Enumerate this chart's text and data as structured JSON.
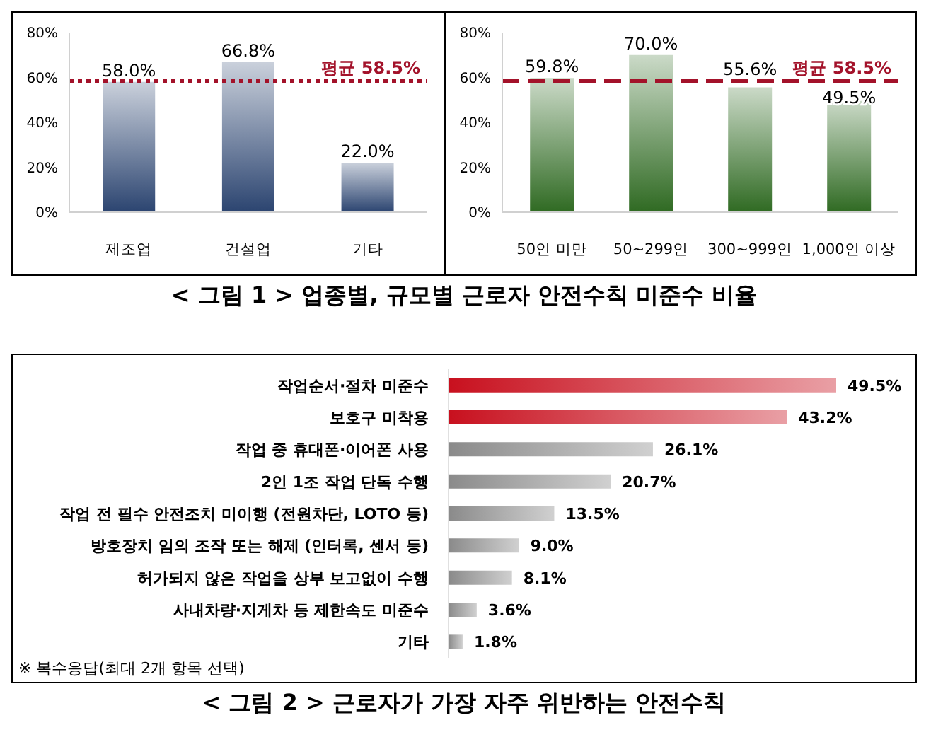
{
  "chart_data": [
    {
      "type": "bar",
      "categories": [
        "제조업",
        "건설업",
        "기타"
      ],
      "values": [
        58.0,
        66.8,
        22.0
      ],
      "color": "#2b4470",
      "value_labels": [
        "58.0%",
        "66.8%",
        "22.0%"
      ],
      "ylim": [
        0,
        80
      ],
      "yticks": [
        {
          "value": 0,
          "label": "0%"
        },
        {
          "value": 20,
          "label": "20%"
        },
        {
          "value": 40,
          "label": "40%"
        },
        {
          "value": 60,
          "label": "60%"
        },
        {
          "value": 80,
          "label": "80%"
        }
      ],
      "ref_lines": [
        {
          "axis": "y",
          "value": 58.5,
          "label": "평균 58.5%",
          "color": "#a3122a",
          "line_style": "dotted"
        }
      ],
      "annotations": [
        "< 그림 1 > 업종별, 규모별 근로자 안전수칙 미준수 비율"
      ]
    },
    {
      "type": "bar",
      "categories": [
        "50인 미만",
        "50~299인",
        "300~999인",
        "1,000인 이상"
      ],
      "values": [
        59.8,
        70.0,
        55.6,
        49.5
      ],
      "color": "#2f6a22",
      "value_labels": [
        "59.8%",
        "70.0%",
        "55.6%",
        "49.5%"
      ],
      "ylim": [
        0,
        80
      ],
      "yticks": [
        {
          "value": 0,
          "label": "0%"
        },
        {
          "value": 20,
          "label": "20%"
        },
        {
          "value": 40,
          "label": "40%"
        },
        {
          "value": 60,
          "label": "60%"
        },
        {
          "value": 80,
          "label": "80%"
        }
      ],
      "ref_lines": [
        {
          "axis": "y",
          "value": 58.5,
          "label": "평균 58.5%",
          "color": "#a3122a",
          "line_style": "dashed"
        }
      ]
    },
    {
      "type": "bar",
      "orientation": "horizontal",
      "title": "< 그림 2 > 근로자가 가장 자주 위반하는 안전수칙",
      "categories": [
        "작업순서·절차 미준수",
        "보호구 미착용",
        "작업 중 휴대폰·이어폰 사용",
        "2인 1조 작업 단독 수행",
        "작업 전 필수 안전조치 미이행 (전원차단, LOTO 등)",
        "방호장치 임의 조작 또는 해제 (인터록, 센서 등)",
        "허가되지 않은 작업을 상부 보고없이 수행",
        "사내차량·지게차 등 제한속도 미준수",
        "기타"
      ],
      "values": [
        49.5,
        43.2,
        26.1,
        20.7,
        13.5,
        9.0,
        8.1,
        3.6,
        1.8
      ],
      "colors": [
        "#c8101e",
        "#c8101e",
        "#8a8a8a",
        "#8a8a8a",
        "#8a8a8a",
        "#8a8a8a",
        "#8a8a8a",
        "#8a8a8a",
        "#8a8a8a"
      ],
      "value_labels": [
        "49.5%",
        "43.2%",
        "26.1%",
        "20.7%",
        "13.5%",
        "9.0%",
        "8.1%",
        "3.6%",
        "1.8%"
      ],
      "annotations": [
        "※ 복수응답(최대 2개 항목 선택)"
      ]
    }
  ]
}
